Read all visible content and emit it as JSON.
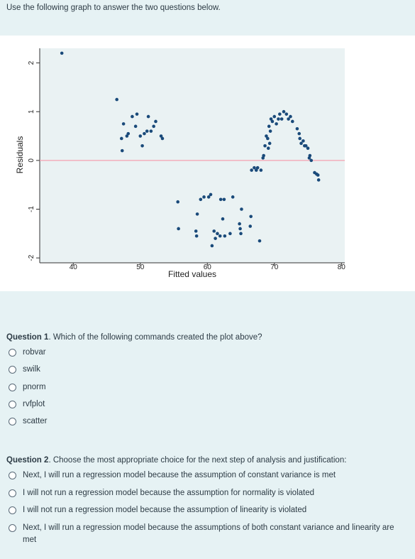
{
  "instructions": "Use the following graph to answer the two questions below.",
  "chart_data": {
    "type": "scatter",
    "xlabel": "Fitted values",
    "ylabel": "Residuals",
    "xlim": [
      35,
      80.5
    ],
    "ylim": [
      -2.1,
      2.3
    ],
    "x_ticks": [
      40,
      50,
      60,
      70,
      80
    ],
    "y_ticks": [
      -2,
      -1,
      0,
      1,
      2
    ],
    "reference_line": 0,
    "reference_line_color": "#f4a0b0",
    "point_color": "#1a4a7a",
    "points": [
      [
        38.3,
        2.2
      ],
      [
        46.5,
        1.25
      ],
      [
        47.2,
        0.45
      ],
      [
        47.3,
        0.2
      ],
      [
        47.5,
        0.75
      ],
      [
        48.0,
        0.5
      ],
      [
        48.2,
        0.55
      ],
      [
        48.8,
        0.9
      ],
      [
        49.3,
        0.7
      ],
      [
        49.5,
        0.95
      ],
      [
        50.0,
        0.5
      ],
      [
        50.3,
        0.3
      ],
      [
        50.6,
        0.55
      ],
      [
        51.0,
        0.6
      ],
      [
        51.2,
        0.9
      ],
      [
        51.6,
        0.6
      ],
      [
        52.0,
        0.7
      ],
      [
        52.3,
        0.8
      ],
      [
        53.1,
        0.5
      ],
      [
        53.3,
        0.45
      ],
      [
        55.6,
        -0.85
      ],
      [
        55.7,
        -1.4
      ],
      [
        58.3,
        -1.45
      ],
      [
        58.4,
        -1.55
      ],
      [
        58.5,
        -1.1
      ],
      [
        59.0,
        -0.8
      ],
      [
        59.5,
        -0.75
      ],
      [
        60.2,
        -0.75
      ],
      [
        60.5,
        -0.7
      ],
      [
        60.7,
        -1.75
      ],
      [
        61.0,
        -1.45
      ],
      [
        61.2,
        -1.6
      ],
      [
        61.5,
        -1.5
      ],
      [
        61.9,
        -1.55
      ],
      [
        62.0,
        -0.8
      ],
      [
        62.3,
        -1.2
      ],
      [
        62.5,
        -0.8
      ],
      [
        62.6,
        -1.55
      ],
      [
        63.4,
        -1.5
      ],
      [
        63.8,
        -0.75
      ],
      [
        64.8,
        -1.3
      ],
      [
        64.9,
        -1.4
      ],
      [
        65.0,
        -1.5
      ],
      [
        65.1,
        -1.0
      ],
      [
        66.4,
        -1.35
      ],
      [
        66.5,
        -1.15
      ],
      [
        66.6,
        -0.2
      ],
      [
        67.0,
        -0.15
      ],
      [
        67.3,
        -0.2
      ],
      [
        67.5,
        -0.15
      ],
      [
        67.8,
        -1.65
      ],
      [
        68.0,
        -0.2
      ],
      [
        68.3,
        0.05
      ],
      [
        68.4,
        0.1
      ],
      [
        68.6,
        0.3
      ],
      [
        68.8,
        0.5
      ],
      [
        69.0,
        0.45
      ],
      [
        69.1,
        0.25
      ],
      [
        69.2,
        0.7
      ],
      [
        69.3,
        0.35
      ],
      [
        69.4,
        0.6
      ],
      [
        69.5,
        0.85
      ],
      [
        69.7,
        0.8
      ],
      [
        70.0,
        0.9
      ],
      [
        70.3,
        0.75
      ],
      [
        70.6,
        0.85
      ],
      [
        70.8,
        0.95
      ],
      [
        71.1,
        0.85
      ],
      [
        71.4,
        1.0
      ],
      [
        71.8,
        0.95
      ],
      [
        72.1,
        0.85
      ],
      [
        72.4,
        0.9
      ],
      [
        72.7,
        0.8
      ],
      [
        73.4,
        0.65
      ],
      [
        73.7,
        0.55
      ],
      [
        73.8,
        0.45
      ],
      [
        74.0,
        0.35
      ],
      [
        74.3,
        0.4
      ],
      [
        74.5,
        0.3
      ],
      [
        74.7,
        0.3
      ],
      [
        75.0,
        0.25
      ],
      [
        75.2,
        0.05
      ],
      [
        75.3,
        0.1
      ],
      [
        75.5,
        0.0
      ],
      [
        76.0,
        -0.25
      ],
      [
        76.3,
        -0.28
      ],
      [
        76.5,
        -0.3
      ],
      [
        76.6,
        -0.4
      ]
    ]
  },
  "question1": {
    "number": "Question 1",
    "text": "Which of the following commands created the plot above?",
    "options": [
      "robvar",
      "swilk",
      "pnorm",
      "rvfplot",
      "scatter"
    ]
  },
  "question2": {
    "number": "Question 2",
    "text": "Choose the most appropriate choice for the next step of analysis and justification:",
    "options": [
      "Next, I will run a regression model because the assumption of constant variance is met",
      "I will not run a regression model because the assumption for normality is violated",
      "I will not run a regression model because the assumption of linearity is violated",
      "Next, I will run a regression model because the assumptions of both constant variance and linearity are met"
    ]
  }
}
